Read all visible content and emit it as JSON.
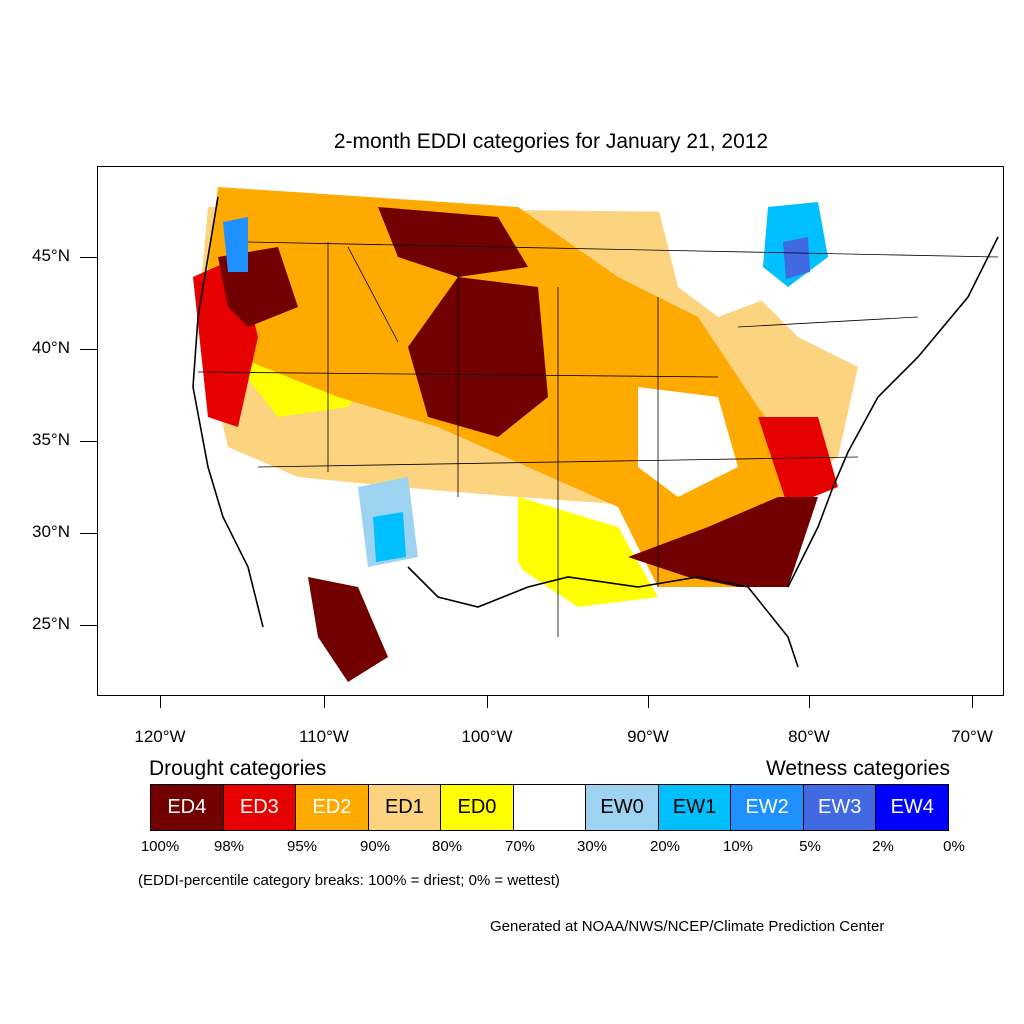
{
  "title": "2-month EDDI categories for January 21, 2012",
  "axes": {
    "lat_labels": [
      "45°N",
      "40°N",
      "35°N",
      "30°N",
      "25°N"
    ],
    "lon_labels": [
      "120°W",
      "110°W",
      "100°W",
      "90°W",
      "80°W",
      "70°W"
    ]
  },
  "legend": {
    "drought_heading": "Drought categories",
    "wetness_heading": "Wetness categories",
    "categories": [
      {
        "label": "ED4",
        "color": "#730000",
        "text_color": "#ffffff"
      },
      {
        "label": "ED3",
        "color": "#e60000",
        "text_color": "#ffffff"
      },
      {
        "label": "ED2",
        "color": "#ffaa00",
        "text_color": "#ffffff"
      },
      {
        "label": "ED1",
        "color": "#fcd37f",
        "text_color": "#000000"
      },
      {
        "label": "ED0",
        "color": "#ffff00",
        "text_color": "#000000"
      },
      {
        "label": "",
        "color": "#ffffff",
        "text_color": "#000000"
      },
      {
        "label": "EW0",
        "color": "#9dd3f0",
        "text_color": "#000000"
      },
      {
        "label": "EW1",
        "color": "#00bfff",
        "text_color": "#000000"
      },
      {
        "label": "EW2",
        "color": "#1e90ff",
        "text_color": "#ffffff"
      },
      {
        "label": "EW3",
        "color": "#4169e1",
        "text_color": "#ffffff"
      },
      {
        "label": "EW4",
        "color": "#0000ff",
        "text_color": "#ffffff"
      }
    ],
    "breaks": [
      "100%",
      "98%",
      "95%",
      "90%",
      "80%",
      "70%",
      "30%",
      "20%",
      "10%",
      "5%",
      "2%",
      "0%"
    ]
  },
  "note": "(EDDI-percentile category breaks: 100% = driest; 0% = wettest)",
  "credit": "Generated at NOAA/NWS/NCEP/Climate Prediction Center"
}
